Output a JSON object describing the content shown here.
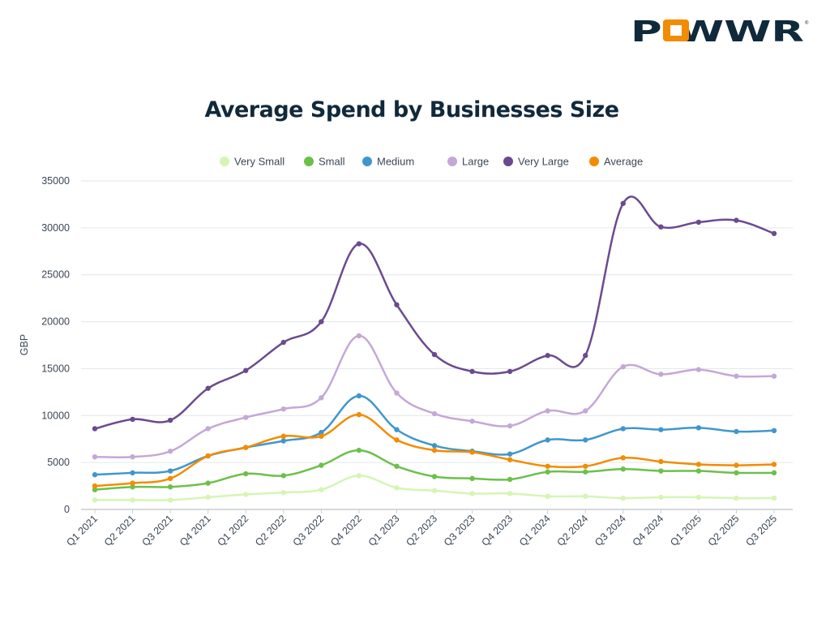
{
  "logo": {
    "text": "POWWR",
    "colors": {
      "dark": "#10293b",
      "accent": "#f28c00"
    }
  },
  "chart_data": {
    "type": "line",
    "title": "Average Spend by Businesses Size",
    "xlabel": "",
    "ylabel": "GBP",
    "ylim": [
      0,
      35000
    ],
    "yticks": [
      "0",
      "5000",
      "10000",
      "15000",
      "20000",
      "25000",
      "30000",
      "35000"
    ],
    "grid": true,
    "legend_position": "top",
    "categories": [
      "Q1 2021",
      "Q2 2021",
      "Q3 2021",
      "Q4 2021",
      "Q1 2022",
      "Q2 2022",
      "Q3 2022",
      "Q4 2022",
      "Q1 2023",
      "Q2 2023",
      "Q3 2023",
      "Q4 2023",
      "Q1 2024",
      "Q2 2024",
      "Q3 2024",
      "Q4 2024",
      "Q1 2025",
      "Q2 2025",
      "Q3 2025"
    ],
    "series": [
      {
        "name": "Very Small",
        "color": "#d6f5b4",
        "values": [
          1000,
          1000,
          1000,
          1300,
          1600,
          1800,
          2100,
          3600,
          2300,
          2000,
          1700,
          1700,
          1400,
          1400,
          1200,
          1300,
          1300,
          1200,
          1200
        ]
      },
      {
        "name": "Small",
        "color": "#6cc04a",
        "values": [
          2100,
          2400,
          2400,
          2800,
          3800,
          3600,
          4700,
          6300,
          4600,
          3500,
          3300,
          3200,
          4000,
          4000,
          4300,
          4100,
          4100,
          3900,
          3900
        ]
      },
      {
        "name": "Medium",
        "color": "#3f97cc",
        "values": [
          3700,
          3900,
          4100,
          5700,
          6600,
          7300,
          8200,
          12100,
          8500,
          6800,
          6200,
          5900,
          7400,
          7400,
          8600,
          8500,
          8700,
          8300,
          8400
        ]
      },
      {
        "name": "Large",
        "color": "#c4a8d6",
        "values": [
          5600,
          5600,
          6200,
          8600,
          9800,
          10700,
          11900,
          18500,
          12400,
          10200,
          9400,
          8900,
          10500,
          10500,
          15200,
          14400,
          14900,
          14200,
          14200
        ]
      },
      {
        "name": "Very Large",
        "color": "#6b4a8f",
        "values": [
          8600,
          9600,
          9500,
          12900,
          14800,
          17800,
          20000,
          28300,
          21800,
          16500,
          14700,
          14700,
          16400,
          16400,
          32600,
          30100,
          30600,
          30800,
          29400
        ]
      },
      {
        "name": "Average",
        "color": "#f28c00",
        "values": [
          2500,
          2800,
          3300,
          5700,
          6600,
          7800,
          7800,
          10100,
          7400,
          6300,
          6100,
          5300,
          4600,
          4600,
          5500,
          5100,
          4800,
          4700,
          4800
        ]
      }
    ]
  }
}
